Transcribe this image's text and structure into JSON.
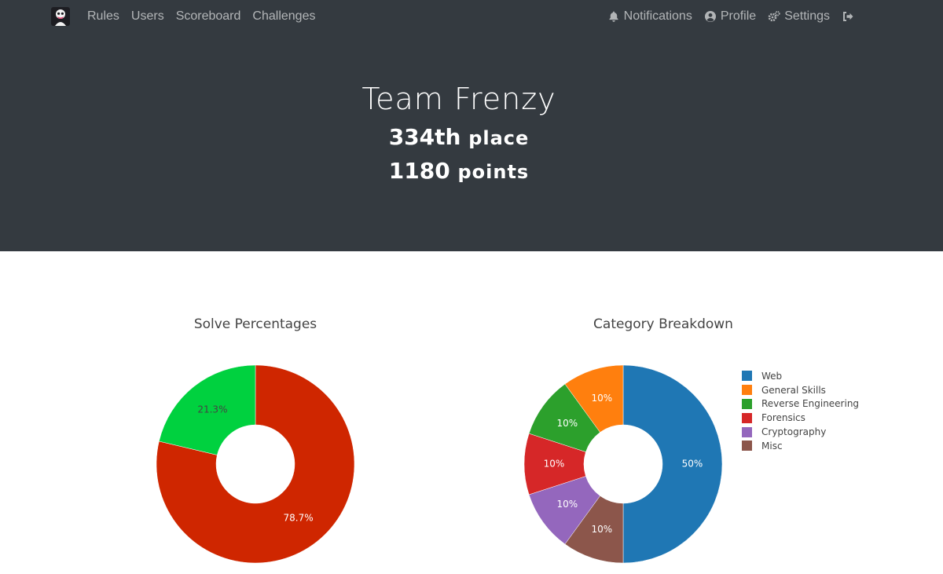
{
  "nav": {
    "left": [
      {
        "label": "Rules"
      },
      {
        "label": "Users"
      },
      {
        "label": "Scoreboard"
      },
      {
        "label": "Challenges"
      }
    ],
    "right": [
      {
        "label": "Notifications",
        "icon": "bell-icon"
      },
      {
        "label": "Profile",
        "icon": "user-circle-icon"
      },
      {
        "label": "Settings",
        "icon": "cogs-icon"
      },
      {
        "label": "",
        "icon": "logout-icon"
      }
    ]
  },
  "team": {
    "name": "Team Frenzy",
    "place_number": "334th",
    "place_word": "place",
    "points_number": "1180",
    "points_word": "points"
  },
  "colors": {
    "header_bg": "#343a40",
    "solves": "#00d13f",
    "fails": "#cf2600"
  },
  "chart_data": [
    {
      "type": "pie",
      "title": "Solve Percentages",
      "hole": true,
      "slices": [
        {
          "label": "21.3%",
          "value": 21.3,
          "color": "#00d13f"
        },
        {
          "label": "78.7%",
          "value": 78.7,
          "color": "#cf2600"
        }
      ]
    },
    {
      "type": "pie",
      "title": "Category Breakdown",
      "hole": true,
      "legend_position": "right",
      "slices": [
        {
          "name": "Web",
          "value": 50,
          "label": "50%",
          "color": "#1f77b4"
        },
        {
          "name": "Misc",
          "value": 10,
          "label": "10%",
          "color": "#8c564b"
        },
        {
          "name": "Cryptography",
          "value": 10,
          "label": "10%",
          "color": "#9467bd"
        },
        {
          "name": "Forensics",
          "value": 10,
          "label": "10%",
          "color": "#d62728"
        },
        {
          "name": "Reverse Engineering",
          "value": 10,
          "label": "10%",
          "color": "#2ca02c"
        },
        {
          "name": "General Skills",
          "value": 10,
          "label": "10%",
          "color": "#ff7f0e"
        }
      ],
      "legend": [
        "Web",
        "General Skills",
        "Reverse Engineering",
        "Forensics",
        "Cryptography",
        "Misc"
      ]
    }
  ]
}
